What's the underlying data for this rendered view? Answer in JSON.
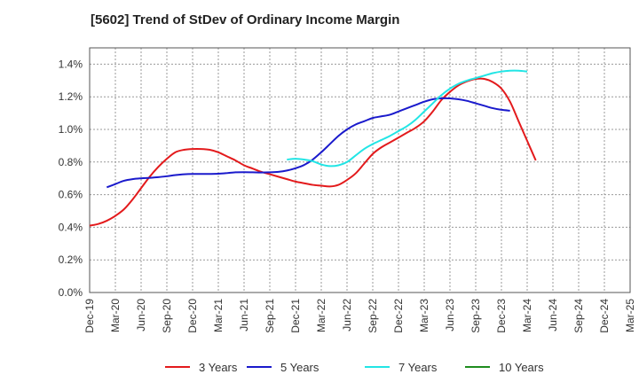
{
  "chart_data": {
    "type": "line",
    "title": "[5602]  Trend of StDev of Ordinary Income Margin",
    "xlabel": "",
    "ylabel": "",
    "x_ticks": [
      "Dec-19",
      "Mar-20",
      "Jun-20",
      "Sep-20",
      "Dec-20",
      "Mar-21",
      "Jun-21",
      "Sep-21",
      "Dec-21",
      "Mar-22",
      "Jun-22",
      "Sep-22",
      "Dec-22",
      "Mar-23",
      "Jun-23",
      "Sep-23",
      "Dec-23",
      "Mar-24",
      "Jun-24",
      "Sep-24",
      "Dec-24",
      "Mar-25"
    ],
    "y_ticks": [
      "0.0%",
      "0.2%",
      "0.4%",
      "0.6%",
      "0.8%",
      "1.0%",
      "1.2%",
      "1.4%"
    ],
    "ylim": [
      0,
      1.5
    ],
    "grid": true,
    "legend_position": "bottom",
    "series": [
      {
        "name": "3 Years",
        "color": "#e31a1c",
        "start_index": 0,
        "values": [
          0.41,
          0.42,
          0.44,
          0.47,
          0.51,
          0.57,
          0.64,
          0.71,
          0.77,
          0.82,
          0.86,
          0.875,
          0.88,
          0.88,
          0.875,
          0.86,
          0.835,
          0.81,
          0.78,
          0.76,
          0.74,
          0.725,
          0.71,
          0.695,
          0.68,
          0.67,
          0.66,
          0.655,
          0.65,
          0.66,
          0.69,
          0.73,
          0.79,
          0.85,
          0.89,
          0.92,
          0.95,
          0.98,
          1.01,
          1.05,
          1.11,
          1.18,
          1.23,
          1.27,
          1.295,
          1.31,
          1.31,
          1.29,
          1.25,
          1.17,
          1.05,
          0.93,
          0.81
        ]
      },
      {
        "name": "5 Years",
        "color": "#1a1acc",
        "start_index": 2,
        "values": [
          0.645,
          0.665,
          0.685,
          0.695,
          0.7,
          0.703,
          0.707,
          0.713,
          0.72,
          0.725,
          0.727,
          0.727,
          0.727,
          0.728,
          0.732,
          0.737,
          0.738,
          0.737,
          0.736,
          0.737,
          0.74,
          0.748,
          0.762,
          0.782,
          0.815,
          0.86,
          0.91,
          0.96,
          1.0,
          1.03,
          1.05,
          1.07,
          1.08,
          1.09,
          1.11,
          1.13,
          1.15,
          1.17,
          1.185,
          1.19,
          1.19,
          1.185,
          1.175,
          1.16,
          1.145,
          1.13,
          1.12,
          1.115
        ]
      },
      {
        "name": "7 Years",
        "color": "#22e5e5",
        "start_index": 23,
        "values": [
          0.815,
          0.82,
          0.815,
          0.805,
          0.785,
          0.775,
          0.78,
          0.8,
          0.84,
          0.88,
          0.91,
          0.935,
          0.96,
          0.99,
          1.02,
          1.06,
          1.11,
          1.16,
          1.21,
          1.25,
          1.28,
          1.3,
          1.315,
          1.33,
          1.345,
          1.355,
          1.36,
          1.36,
          1.355
        ]
      },
      {
        "name": "10 Years",
        "color": "#1e8c1e",
        "start_index": 0,
        "values": []
      }
    ]
  }
}
